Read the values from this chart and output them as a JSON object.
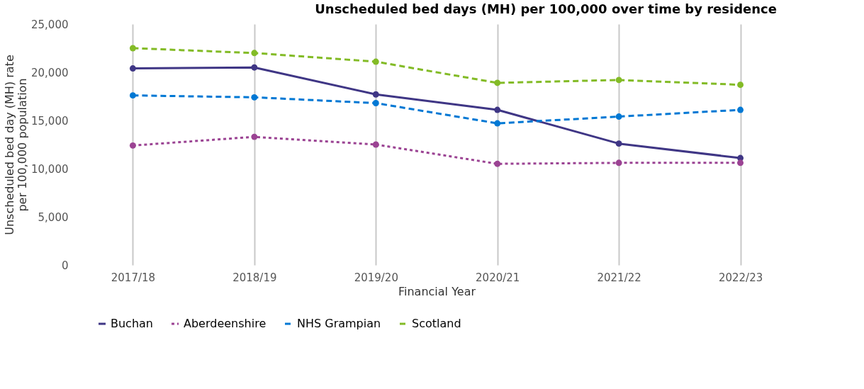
{
  "chart_data": {
    "type": "line",
    "title": "Unscheduled bed days (MH) per 100,000 over time by residence",
    "xlabel": "Financial Year",
    "ylabel": "Unscheduled bed day (MH) rate per 100,000 population",
    "categories": [
      "2017/18",
      "2018/19",
      "2019/20",
      "2020/21",
      "2021/22",
      "2022/23"
    ],
    "series": [
      {
        "name": "Buchan",
        "color": "#3f3685",
        "line_style": "solid",
        "values": [
          20400,
          20500,
          17700,
          16100,
          12600,
          11100
        ]
      },
      {
        "name": "Aberdeenshire",
        "color": "#9b4393",
        "line_style": "dotted",
        "values": [
          12400,
          13300,
          12500,
          10500,
          10600,
          10600
        ]
      },
      {
        "name": "NHS Grampian",
        "color": "#0078d4",
        "line_style": "dashed",
        "values": [
          17600,
          17400,
          16800,
          14700,
          15400,
          16100
        ]
      },
      {
        "name": "Scotland",
        "color": "#83bb26",
        "line_style": "dashed",
        "values": [
          22500,
          22000,
          21100,
          18900,
          19200,
          18700
        ]
      }
    ],
    "ylim": [
      0,
      25000
    ],
    "yticks": [
      0,
      {
        "value": 5000,
        "label": "5,000"
      },
      {
        "value": 10000,
        "label": "10,000"
      },
      {
        "value": 15000,
        "label": "15,000"
      },
      {
        "value": 20000,
        "label": "20,000"
      },
      {
        "value": 25000,
        "label": "25,000"
      }
    ],
    "grid": "x",
    "legend": "bottom",
    "marker": "circle"
  }
}
